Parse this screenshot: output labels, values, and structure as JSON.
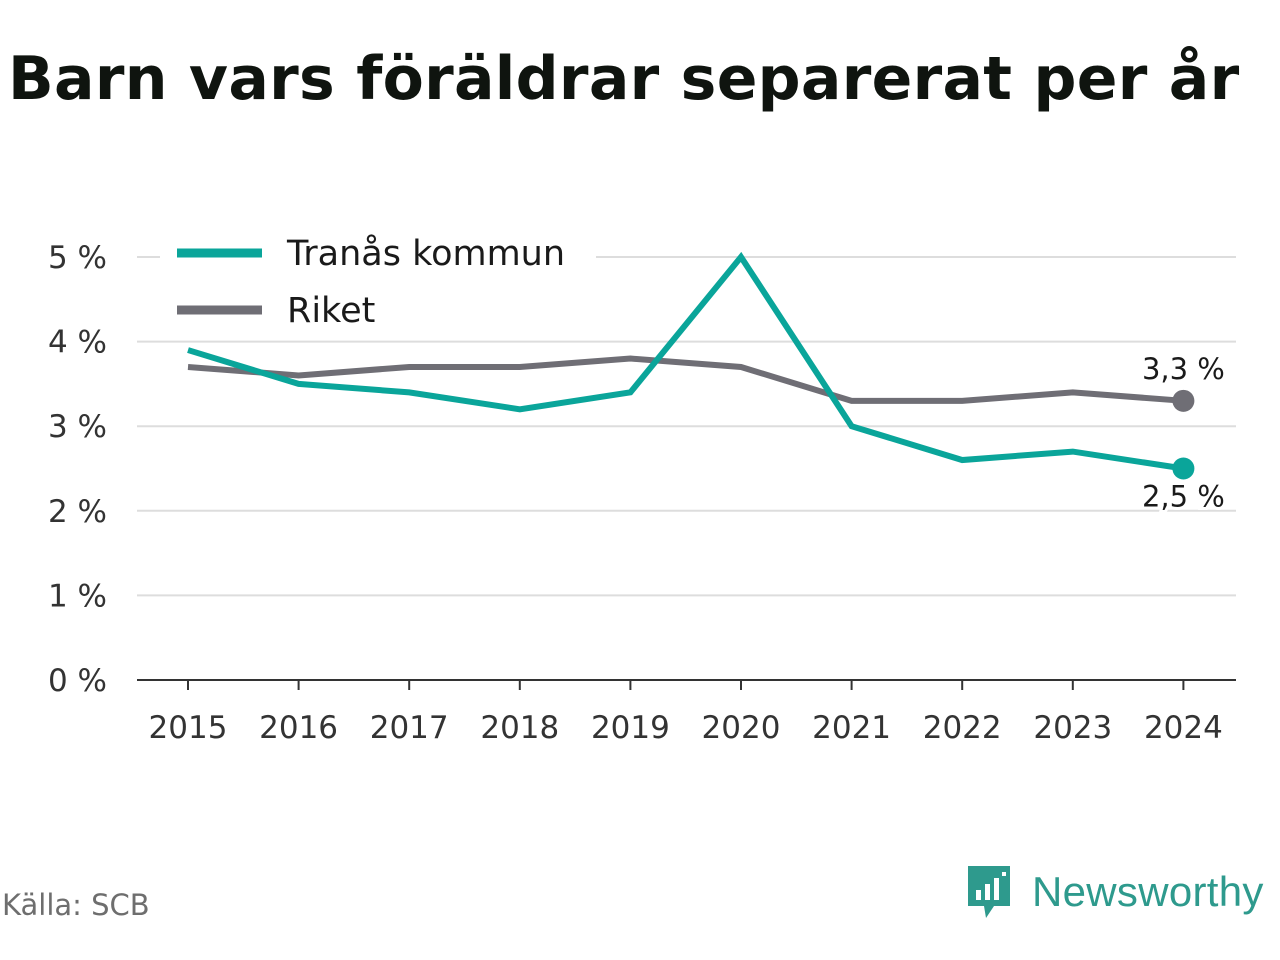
{
  "title": "Barn vars föräldrar separerat per år",
  "source": "Källa: SCB",
  "brand": {
    "name": "Newsworthy",
    "icon": "newsworthy-logo-icon",
    "color": "#2e9a8d"
  },
  "chart_data": {
    "type": "line",
    "title": "Barn vars föräldrar separerat per år",
    "x": [
      "2015",
      "2016",
      "2017",
      "2018",
      "2019",
      "2020",
      "2021",
      "2022",
      "2023",
      "2024"
    ],
    "ylim": [
      0,
      5
    ],
    "yticks": [
      0,
      1,
      2,
      3,
      4,
      5
    ],
    "ytick_labels": [
      "0 %",
      "1 %",
      "2 %",
      "3 %",
      "4 %",
      "5 %"
    ],
    "grid": true,
    "legend_position": "top-left",
    "series": [
      {
        "name": "Tranås kommun",
        "color": "#0aa59a",
        "values": [
          3.9,
          3.5,
          3.4,
          3.2,
          3.4,
          5.0,
          3.0,
          2.6,
          2.7,
          2.5
        ],
        "end_label": "2,5 %"
      },
      {
        "name": "Riket",
        "color": "#6f6e75",
        "values": [
          3.7,
          3.6,
          3.7,
          3.7,
          3.8,
          3.7,
          3.3,
          3.3,
          3.4,
          3.3
        ],
        "end_label": "3,3 %"
      }
    ]
  }
}
